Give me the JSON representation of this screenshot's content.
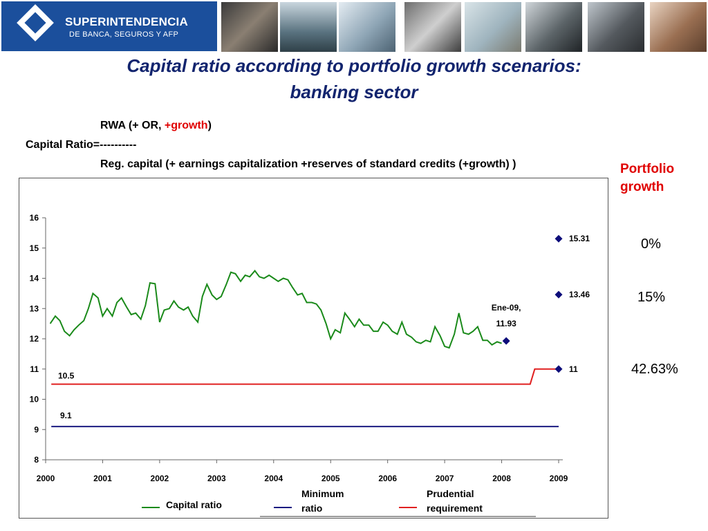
{
  "header": {
    "logo_line1": "SUPERINTENDENCIA",
    "logo_line2": "DE BANCA, SEGUROS Y AFP",
    "photos": [
      "credit-card-photo",
      "building-photo",
      "keyboard-photo",
      "office-photo",
      "money-photo",
      "payment-terminal-photo",
      "meeting-photo",
      "handshake-photo"
    ]
  },
  "title_line1": "Capital ratio according to portfolio growth scenarios:",
  "title_line2": "banking sector",
  "formula": {
    "numerator_prefix": "RWA  (+ OR, ",
    "numerator_growth": "+growth",
    "numerator_suffix": ")",
    "lhs": "Capital Ratio=----------",
    "denominator": "Reg. capital (+ earnings capitalization +reserves of standard credits (+growth) )"
  },
  "portfolio_growth": {
    "label_line1": "Portfolio",
    "label_line2": "growth",
    "scenarios": [
      "0%",
      "15%",
      "42.63%"
    ]
  },
  "colors": {
    "capital": "#1a8a1a",
    "minimum": "#1a1a80",
    "prudential": "#e02020",
    "marker": "#0d0d7a",
    "title": "#12246e"
  },
  "chart_data": {
    "type": "line",
    "x_ticks": [
      "2000",
      "2001",
      "2002",
      "2003",
      "2004",
      "2005",
      "2006",
      "2007",
      "2008",
      "2009"
    ],
    "y_ticks": [
      "8",
      "9",
      "10",
      "11",
      "12",
      "13",
      "14",
      "15",
      "16"
    ],
    "ylim": [
      8,
      16
    ],
    "xlim": [
      2000,
      2009
    ],
    "series": [
      {
        "name": "Capital ratio",
        "color": "#1a8a1a",
        "x": [
          2000.08,
          2000.17,
          2000.25,
          2000.33,
          2000.42,
          2000.5,
          2000.58,
          2000.67,
          2000.75,
          2000.83,
          2000.92,
          2001.0,
          2001.08,
          2001.17,
          2001.25,
          2001.33,
          2001.42,
          2001.5,
          2001.58,
          2001.67,
          2001.75,
          2001.83,
          2001.92,
          2002.0,
          2002.08,
          2002.17,
          2002.25,
          2002.33,
          2002.42,
          2002.5,
          2002.58,
          2002.67,
          2002.75,
          2002.83,
          2002.92,
          2003.0,
          2003.08,
          2003.17,
          2003.25,
          2003.33,
          2003.42,
          2003.5,
          2003.58,
          2003.67,
          2003.75,
          2003.83,
          2003.92,
          2004.0,
          2004.08,
          2004.17,
          2004.25,
          2004.33,
          2004.42,
          2004.5,
          2004.58,
          2004.67,
          2004.75,
          2004.83,
          2004.92,
          2005.0,
          2005.08,
          2005.17,
          2005.25,
          2005.33,
          2005.42,
          2005.5,
          2005.58,
          2005.67,
          2005.75,
          2005.83,
          2005.92,
          2006.0,
          2006.08,
          2006.17,
          2006.25,
          2006.33,
          2006.42,
          2006.5,
          2006.58,
          2006.67,
          2006.75,
          2006.83,
          2006.92,
          2007.0,
          2007.08,
          2007.17,
          2007.25,
          2007.33,
          2007.42,
          2007.5,
          2007.58,
          2007.67,
          2007.75,
          2007.83,
          2007.92,
          2008.0
        ],
        "y": [
          12.5,
          12.75,
          12.6,
          12.25,
          12.1,
          12.3,
          12.45,
          12.6,
          13.0,
          13.5,
          13.35,
          12.75,
          13.0,
          12.75,
          13.2,
          13.35,
          13.05,
          12.8,
          12.85,
          12.65,
          13.1,
          13.85,
          13.82,
          12.55,
          12.95,
          13.0,
          13.25,
          13.05,
          12.95,
          13.05,
          12.75,
          12.55,
          13.4,
          13.8,
          13.45,
          13.3,
          13.4,
          13.8,
          14.2,
          14.15,
          13.9,
          14.1,
          14.05,
          14.25,
          14.05,
          14.0,
          14.1,
          14.0,
          13.9,
          14.0,
          13.95,
          13.7,
          13.45,
          13.5,
          13.2,
          13.2,
          13.15,
          12.95,
          12.5,
          12.0,
          12.3,
          12.2,
          12.85,
          12.65,
          12.4,
          12.65,
          12.45,
          12.45,
          12.25,
          12.25,
          12.55,
          12.45,
          12.25,
          12.15,
          12.55,
          12.15,
          12.05,
          11.9,
          11.85,
          11.95,
          11.9,
          12.4,
          12.1,
          11.75,
          11.7,
          12.15,
          12.85,
          12.2,
          12.15,
          12.25,
          12.4,
          11.95,
          11.95,
          11.8,
          11.9,
          11.85
        ]
      },
      {
        "name": "Minimum ratio",
        "color": "#1a1a80",
        "x": [
          2000.1,
          2009.0
        ],
        "y": [
          9.1,
          9.1
        ]
      },
      {
        "name": "Prudential requirement",
        "color": "#e02020",
        "x": [
          2000.1,
          2008.5,
          2008.58,
          2009.0
        ],
        "y": [
          10.5,
          10.5,
          11.0,
          11.0
        ]
      }
    ],
    "points": [
      {
        "x": 2008.08,
        "y": 11.93,
        "label_line1": "Ene-09,",
        "label_line2": "11.93"
      },
      {
        "x": 2009.0,
        "y": 15.31,
        "label": "15.31"
      },
      {
        "x": 2009.0,
        "y": 13.46,
        "label": "13.46"
      },
      {
        "x": 2009.0,
        "y": 11.0,
        "label": "11"
      }
    ],
    "annotations": [
      {
        "text": "10.5"
      },
      {
        "text": "9.1"
      }
    ],
    "legend": [
      {
        "line1": "Capital ratio",
        "line2": ""
      },
      {
        "line1": "Minimum",
        "line2": "ratio"
      },
      {
        "line1": "Prudential",
        "line2": "requirement"
      }
    ]
  }
}
